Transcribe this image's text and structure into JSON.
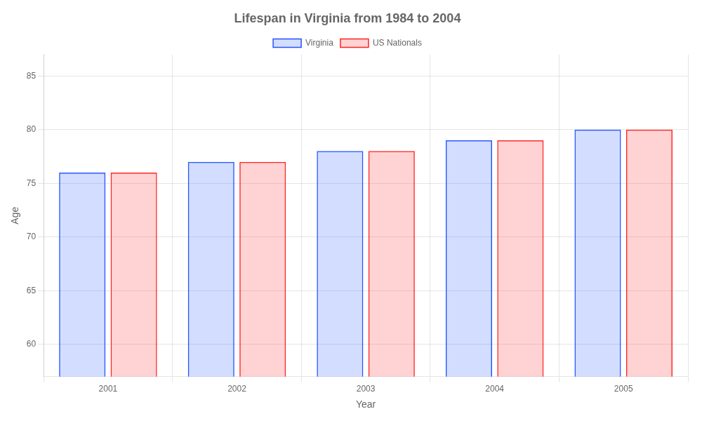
{
  "chart_data": {
    "type": "bar",
    "title": "Lifespan in Virginia from 1984 to 2004",
    "xlabel": "Year",
    "ylabel": "Age",
    "categories": [
      "2001",
      "2002",
      "2003",
      "2004",
      "2005"
    ],
    "series": [
      {
        "name": "Virginia",
        "color": "#2255ff",
        "values": [
          76,
          77,
          78,
          79,
          80
        ]
      },
      {
        "name": "US Nationals",
        "color": "#ff2222",
        "values": [
          76,
          77,
          78,
          79,
          80
        ]
      }
    ],
    "ylim": [
      57,
      87
    ],
    "yticks": [
      60,
      65,
      70,
      75,
      80,
      85
    ],
    "grid": true,
    "legend": "top"
  }
}
